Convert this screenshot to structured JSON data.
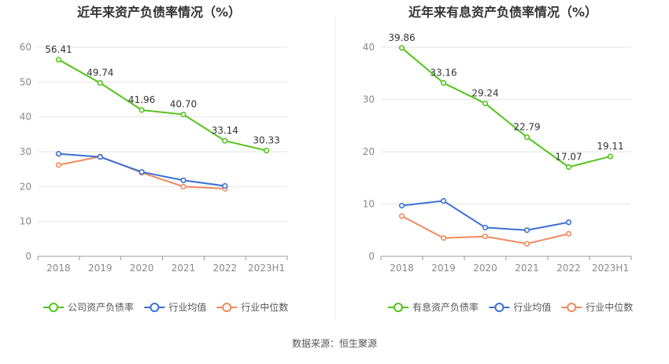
{
  "colors": {
    "series_main": "#52c41a",
    "industry_avg": "#3b6fd6",
    "industry_median": "#f08a5d",
    "grid": "#e6e6e6",
    "axis": "#999999",
    "tick_text": "#888888",
    "title": "#333333"
  },
  "source_text": "数据来源：恒生聚源",
  "chart_data": [
    {
      "type": "line",
      "title": "近年来资产负债率情况（%）",
      "categories": [
        "2018",
        "2019",
        "2020",
        "2021",
        "2022",
        "2023H1"
      ],
      "ylim": [
        0,
        60
      ],
      "yticks": [
        0,
        10,
        20,
        30,
        40,
        50,
        60
      ],
      "grid": true,
      "legend_position": "bottom",
      "series": [
        {
          "name": "公司资产负债率",
          "color": "#52c41a",
          "values": [
            56.41,
            49.74,
            41.96,
            40.7,
            33.14,
            30.33
          ],
          "labels": [
            "56.41",
            "49.74",
            "41.96",
            "40.70",
            "33.14",
            "30.33"
          ]
        },
        {
          "name": "行业均值",
          "color": "#3b6fd6",
          "values": [
            29.4,
            28.5,
            24.2,
            21.8,
            20.2,
            null
          ]
        },
        {
          "name": "行业中位数",
          "color": "#f08a5d",
          "values": [
            26.2,
            28.6,
            24.0,
            20.0,
            19.4,
            null
          ]
        }
      ]
    },
    {
      "type": "line",
      "title": "近年来有息资产负债率情况（%）",
      "categories": [
        "2018",
        "2019",
        "2020",
        "2021",
        "2022",
        "2023H1"
      ],
      "ylim": [
        0,
        40
      ],
      "yticks": [
        0,
        10,
        20,
        30,
        40
      ],
      "grid": true,
      "legend_position": "bottom",
      "series": [
        {
          "name": "有息资产负债率",
          "color": "#52c41a",
          "values": [
            39.86,
            33.16,
            29.24,
            22.79,
            17.07,
            19.11
          ],
          "labels": [
            "39.86",
            "33.16",
            "29.24",
            "22.79",
            "17.07",
            "19.11"
          ]
        },
        {
          "name": "行业均值",
          "color": "#3b6fd6",
          "values": [
            9.7,
            10.6,
            5.5,
            5.0,
            6.5,
            null
          ]
        },
        {
          "name": "行业中位数",
          "color": "#f08a5d",
          "values": [
            7.7,
            3.5,
            3.8,
            2.4,
            4.3,
            null
          ]
        }
      ]
    }
  ]
}
